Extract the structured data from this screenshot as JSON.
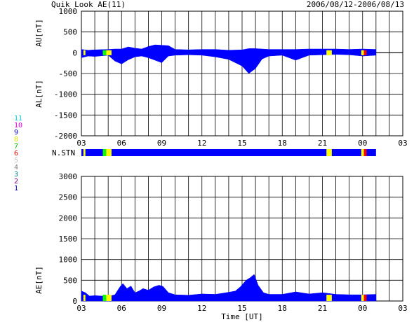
{
  "header": {
    "title": "Quik Look AE(11)",
    "date_range": "2006/08/12-2006/08/13"
  },
  "station_legend": [
    {
      "label": "11",
      "color": "#00d0d0"
    },
    {
      "label": "10",
      "color": "#e000e0"
    },
    {
      "label": "9",
      "color": "#0000c0"
    },
    {
      "label": "8",
      "color": "#e0e000"
    },
    {
      "label": "7",
      "color": "#00c000"
    },
    {
      "label": "6",
      "color": "#e00000"
    },
    {
      "label": "5",
      "color": "#c0c0c0"
    },
    {
      "label": "4",
      "color": "#808080"
    },
    {
      "label": "3",
      "color": "#008080"
    },
    {
      "label": "2",
      "color": "#800080"
    },
    {
      "label": "1",
      "color": "#0000a0"
    }
  ],
  "chart_data": [
    {
      "type": "area",
      "name": "AU/AL",
      "ylabel_top": "AU[nT]",
      "ylabel_bottom": "AL[nT]",
      "ylim": [
        -2000,
        1000
      ],
      "yticks": [
        1000,
        500,
        0,
        -500,
        -1000,
        -1500,
        -2000
      ],
      "xlim": [
        3,
        27
      ],
      "xticks": [
        "03",
        "06",
        "09",
        "12",
        "15",
        "18",
        "21",
        "00",
        "03"
      ],
      "grid": true,
      "series": [
        {
          "key": "AU",
          "x": [
            3,
            3.5,
            4,
            5,
            5.5,
            6,
            6.5,
            7,
            7.5,
            8,
            8.5,
            9,
            9.5,
            10,
            11,
            12,
            13,
            14,
            15,
            15.5,
            16,
            16.5,
            17,
            18,
            19,
            20,
            21,
            22,
            23,
            24,
            25
          ],
          "values": [
            80,
            60,
            70,
            80,
            90,
            90,
            140,
            110,
            90,
            150,
            190,
            180,
            170,
            80,
            70,
            80,
            80,
            60,
            70,
            100,
            100,
            90,
            80,
            80,
            80,
            90,
            90,
            90,
            80,
            90,
            80
          ]
        },
        {
          "key": "AL",
          "x": [
            3,
            3.5,
            4,
            5,
            5.5,
            6,
            6.5,
            7,
            7.5,
            8,
            8.5,
            9,
            9.5,
            10,
            11,
            12,
            13,
            14,
            15,
            15.5,
            16,
            16.5,
            17,
            18,
            19,
            20,
            21,
            22,
            23,
            24,
            25
          ],
          "values": [
            -120,
            -80,
            -90,
            -60,
            -200,
            -270,
            -170,
            -100,
            -80,
            -120,
            -180,
            -240,
            -80,
            -60,
            -50,
            -60,
            -100,
            -160,
            -320,
            -500,
            -380,
            -150,
            -80,
            -60,
            -180,
            -60,
            -50,
            -40,
            -50,
            -80,
            -60
          ]
        }
      ]
    },
    {
      "type": "bar",
      "name": "N.STN",
      "label": "N.STN",
      "segments": [
        {
          "from": 3,
          "to": 25,
          "value": 9,
          "color": "#0000ff"
        },
        {
          "from": 3.15,
          "to": 3.3,
          "value": 8,
          "color": "#ffff00"
        },
        {
          "from": 4.6,
          "to": 4.85,
          "value": 7,
          "color": "#00ff00"
        },
        {
          "from": 4.85,
          "to": 5.25,
          "value": 8,
          "color": "#ffff00"
        },
        {
          "from": 21.3,
          "to": 21.7,
          "value": 8,
          "color": "#ffff00"
        },
        {
          "from": 23.9,
          "to": 24.1,
          "value": 8,
          "color": "#ffff00"
        },
        {
          "from": 24.1,
          "to": 24.3,
          "value": 6,
          "color": "#ff0000"
        }
      ]
    },
    {
      "type": "area",
      "name": "AE",
      "ylabel": "AE[nT]",
      "xlabel": "Time [UT]",
      "ylim": [
        0,
        3000
      ],
      "yticks": [
        3000,
        2500,
        2000,
        1500,
        1000,
        500,
        0
      ],
      "xlim": [
        3,
        27
      ],
      "xticks": [
        "03",
        "06",
        "09",
        "12",
        "15",
        "18",
        "21",
        "00",
        "03"
      ],
      "grid": true,
      "x": [
        3,
        3.3,
        3.6,
        4,
        4.5,
        5,
        5.5,
        5.9,
        6.1,
        6.4,
        6.7,
        7,
        7.3,
        7.6,
        8,
        8.4,
        8.8,
        9.1,
        9.5,
        10,
        11,
        12,
        13,
        14,
        14.5,
        14.9,
        15.3,
        15.6,
        15.9,
        16.2,
        16.6,
        17,
        18,
        19,
        20,
        21,
        22,
        23,
        24,
        25
      ],
      "values": [
        240,
        200,
        120,
        130,
        120,
        110,
        150,
        350,
        420,
        300,
        360,
        200,
        240,
        300,
        260,
        340,
        380,
        350,
        200,
        150,
        140,
        170,
        160,
        210,
        240,
        350,
        500,
        560,
        640,
        380,
        200,
        160,
        160,
        220,
        170,
        200,
        160,
        150,
        150,
        160
      ]
    }
  ]
}
